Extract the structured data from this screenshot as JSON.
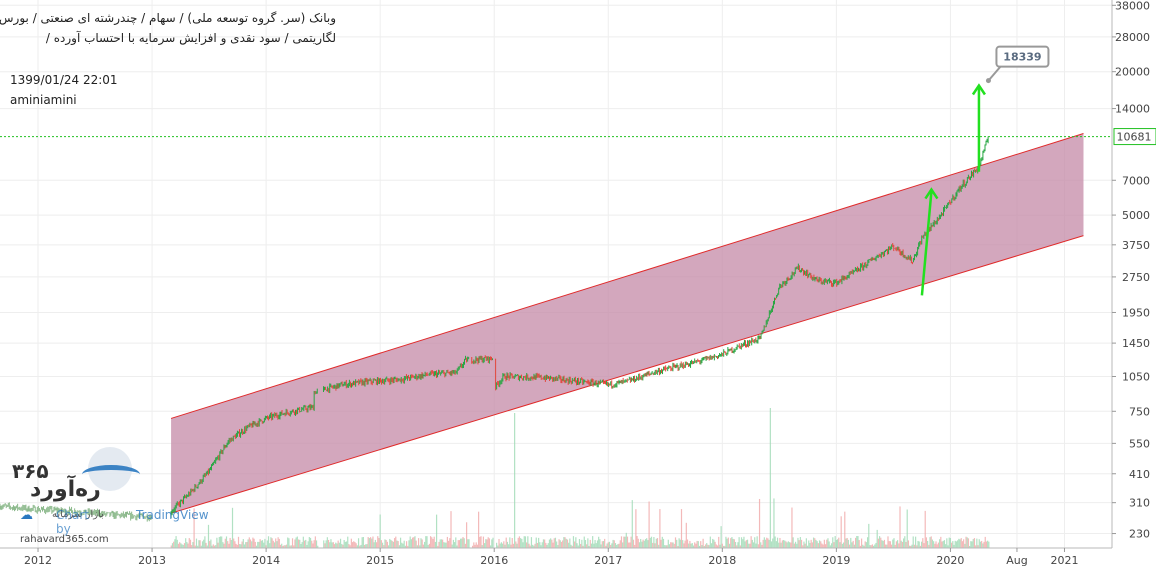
{
  "header": {
    "line1": "وبانک (سر. گروه توسعه ملی) / سهام / چندرشته ای صنعتی / بورس تهران",
    "line2": "لگاریتمی / سود نقدی و افزایش سرمایه با احتساب آورده /",
    "datetime": "1399/01/24 22:01",
    "author": "aminiamini"
  },
  "watermark": {
    "brand_number": "۳۶۵",
    "brand_name": "ره‌آورد",
    "brand_sub": "بازار سرمایه",
    "chart_by": "Chart by",
    "tradingview": "TradingView",
    "site": "rahavard365.com"
  },
  "colors": {
    "channel_fill": "#c48aa7",
    "channel_line": "#e02a2a",
    "up_candle": "#26a641",
    "down_candle": "#e2463a",
    "arrow": "#22e020",
    "current_line": "#20c020",
    "axis_bg": "#ffffff",
    "grid": "#eeeeee"
  },
  "chart_data": {
    "type": "candlestick",
    "scale": "log",
    "x_labels": [
      "2012",
      "2013",
      "2014",
      "2015",
      "2016",
      "2017",
      "2018",
      "2019",
      "2020",
      "Aug",
      "2021"
    ],
    "y_labels": [
      "38000",
      "28000",
      "20000",
      "14000",
      "10681",
      "7000",
      "5000",
      "3750",
      "2750",
      "1950",
      "1450",
      "1050",
      "750",
      "550",
      "410",
      "310",
      "230"
    ],
    "y_range": [
      200,
      40000
    ],
    "x_range": [
      "2011-09",
      "2021-06"
    ],
    "current_price": 10681,
    "target_label": "18339",
    "target_price": 18339,
    "channel": {
      "upper_start": {
        "date": "2013-03",
        "price": 700
      },
      "upper_end": {
        "date": "2021-03",
        "price": 11000
      },
      "lower_start": {
        "date": "2013-03",
        "price": 280
      },
      "lower_end": {
        "date": "2021-03",
        "price": 4100
      }
    },
    "price_path": [
      [
        "2011-09",
        300
      ],
      [
        "2012-01",
        290
      ],
      [
        "2012-05",
        285
      ],
      [
        "2012-09",
        275
      ],
      [
        "2013-01",
        270
      ],
      [
        "2013-03",
        285
      ],
      [
        "2013-05",
        340
      ],
      [
        "2013-07",
        420
      ],
      [
        "2013-09",
        560
      ],
      [
        "2013-11",
        640
      ],
      [
        "2014-01",
        700
      ],
      [
        "2014-03",
        740
      ],
      [
        "2014-06",
        780
      ],
      [
        "2014-06",
        900
      ],
      [
        "2014-09",
        970
      ],
      [
        "2014-12",
        1000
      ],
      [
        "2015-03",
        1020
      ],
      [
        "2015-06",
        1070
      ],
      [
        "2015-09",
        1090
      ],
      [
        "2015-10",
        1230
      ],
      [
        "2016-01",
        1250
      ],
      [
        "2016-01",
        940
      ],
      [
        "2016-02",
        1050
      ],
      [
        "2016-06",
        1040
      ],
      [
        "2016-10",
        1000
      ],
      [
        "2017-01",
        970
      ],
      [
        "2017-03",
        1000
      ],
      [
        "2017-06",
        1100
      ],
      [
        "2017-10",
        1200
      ],
      [
        "2018-01",
        1300
      ],
      [
        "2018-03",
        1420
      ],
      [
        "2018-05",
        1520
      ],
      [
        "2018-07",
        2500
      ],
      [
        "2018-09",
        3000
      ],
      [
        "2018-11",
        2650
      ],
      [
        "2019-01",
        2600
      ],
      [
        "2019-03",
        2900
      ],
      [
        "2019-05",
        3300
      ],
      [
        "2019-07",
        3700
      ],
      [
        "2019-09",
        3200
      ],
      [
        "2019-10",
        4000
      ],
      [
        "2019-12",
        5000
      ],
      [
        "2020-02",
        6500
      ],
      [
        "2020-04",
        8000
      ],
      [
        "2020-05",
        10681
      ]
    ],
    "arrows": [
      {
        "from": {
          "date": "2019-10",
          "price": 2300
        },
        "to": {
          "date": "2019-11",
          "price": 6400
        }
      },
      {
        "from": {
          "date": "2020-04",
          "price": 7600
        },
        "to": {
          "date": "2020-04",
          "price": 17500
        }
      }
    ]
  }
}
